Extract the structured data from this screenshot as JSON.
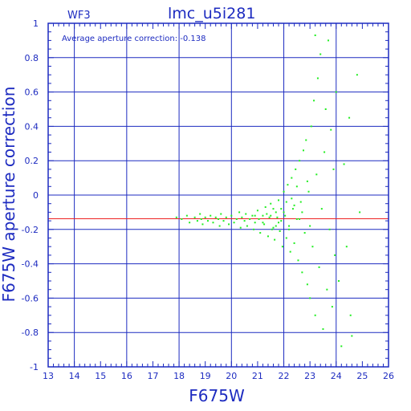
{
  "chart_data": {
    "type": "scatter",
    "title": "lmc_u5i281",
    "subtitle": "WF3",
    "annotation": "Average aperture correction: -0.138",
    "xlabel": "F675W",
    "ylabel": "F675W aperture correction",
    "xlim": [
      13,
      26
    ],
    "ylim": [
      -1,
      1
    ],
    "x_ticks": [
      "13",
      "14",
      "15",
      "16",
      "17",
      "18",
      "19",
      "20",
      "21",
      "22",
      "23",
      "24",
      "25",
      "26"
    ],
    "y_ticks": [
      "-1",
      "-0.8",
      "-0.6",
      "-0.4",
      "-0.2",
      "0",
      "0.2",
      "0.4",
      "0.6",
      "0.8",
      "1"
    ],
    "grid": true,
    "average_line": -0.138,
    "colors": {
      "axes": "#1d2bc0",
      "points": "#22ee22",
      "average_line": "#ee2222"
    },
    "points": [
      [
        17.9,
        -0.13
      ],
      [
        18.1,
        -0.14
      ],
      [
        18.3,
        -0.12
      ],
      [
        18.4,
        -0.16
      ],
      [
        18.6,
        -0.13
      ],
      [
        18.7,
        -0.15
      ],
      [
        18.8,
        -0.11
      ],
      [
        18.85,
        -0.14
      ],
      [
        18.9,
        -0.17
      ],
      [
        19.0,
        -0.13
      ],
      [
        19.1,
        -0.15
      ],
      [
        19.2,
        -0.12
      ],
      [
        19.3,
        -0.16
      ],
      [
        19.4,
        -0.13
      ],
      [
        19.5,
        -0.14
      ],
      [
        19.55,
        -0.18
      ],
      [
        19.6,
        -0.11
      ],
      [
        19.7,
        -0.15
      ],
      [
        19.8,
        -0.13
      ],
      [
        19.9,
        -0.17
      ],
      [
        20.0,
        -0.12
      ],
      [
        20.1,
        -0.16
      ],
      [
        20.2,
        -0.14
      ],
      [
        20.3,
        -0.1
      ],
      [
        20.35,
        -0.19
      ],
      [
        20.4,
        -0.13
      ],
      [
        20.5,
        -0.15
      ],
      [
        20.55,
        -0.11
      ],
      [
        20.6,
        -0.18
      ],
      [
        20.7,
        -0.14
      ],
      [
        20.8,
        -0.12
      ],
      [
        20.85,
        -0.2
      ],
      [
        20.9,
        -0.16
      ],
      [
        21.0,
        -0.09
      ],
      [
        21.05,
        -0.14
      ],
      [
        21.1,
        -0.22
      ],
      [
        21.2,
        -0.12
      ],
      [
        21.25,
        -0.17
      ],
      [
        21.3,
        -0.07
      ],
      [
        21.4,
        -0.24
      ],
      [
        21.45,
        -0.13
      ],
      [
        21.5,
        -0.05
      ],
      [
        21.6,
        -0.19
      ],
      [
        21.65,
        -0.26
      ],
      [
        21.7,
        -0.1
      ],
      [
        21.8,
        -0.03
      ],
      [
        21.85,
        -0.21
      ],
      [
        21.9,
        -0.15
      ],
      [
        21.95,
        -0.3
      ],
      [
        22.0,
        0.02
      ],
      [
        22.05,
        -0.12
      ],
      [
        22.1,
        -0.25
      ],
      [
        22.15,
        0.06
      ],
      [
        22.2,
        -0.18
      ],
      [
        22.25,
        -0.33
      ],
      [
        22.3,
        0.1
      ],
      [
        22.35,
        -0.08
      ],
      [
        22.4,
        -0.28
      ],
      [
        22.45,
        0.15
      ],
      [
        22.5,
        -0.14
      ],
      [
        22.55,
        -0.38
      ],
      [
        22.6,
        0.2
      ],
      [
        22.65,
        -0.04
      ],
      [
        22.7,
        -0.45
      ],
      [
        22.75,
        0.26
      ],
      [
        22.8,
        -0.22
      ],
      [
        22.85,
        0.32
      ],
      [
        22.9,
        -0.52
      ],
      [
        22.95,
        0.02
      ],
      [
        23.0,
        -0.6
      ],
      [
        23.05,
        0.4
      ],
      [
        23.1,
        -0.3
      ],
      [
        23.15,
        0.55
      ],
      [
        23.2,
        -0.7
      ],
      [
        23.25,
        0.12
      ],
      [
        23.3,
        0.68
      ],
      [
        23.35,
        -0.42
      ],
      [
        23.4,
        0.82
      ],
      [
        23.45,
        -0.08
      ],
      [
        23.5,
        -0.78
      ],
      [
        23.55,
        0.25
      ],
      [
        23.6,
        0.5
      ],
      [
        23.65,
        -0.55
      ],
      [
        23.7,
        0.9
      ],
      [
        23.75,
        -0.2
      ],
      [
        23.8,
        0.38
      ],
      [
        23.85,
        -0.65
      ],
      [
        23.9,
        0.15
      ],
      [
        23.95,
        -0.35
      ],
      [
        24.0,
        0.6
      ],
      [
        24.1,
        -0.5
      ],
      [
        24.2,
        -0.88
      ],
      [
        24.3,
        0.18
      ],
      [
        24.4,
        -0.3
      ],
      [
        24.5,
        0.45
      ],
      [
        24.55,
        -0.7
      ],
      [
        24.6,
        -0.82
      ],
      [
        24.8,
        0.7
      ],
      [
        24.9,
        -0.1
      ],
      [
        23.2,
        0.93
      ],
      [
        22.3,
        -0.02
      ],
      [
        22.5,
        0.05
      ],
      [
        22.7,
        -0.1
      ],
      [
        22.9,
        0.08
      ],
      [
        23.0,
        -0.18
      ],
      [
        21.8,
        -0.16
      ],
      [
        21.9,
        -0.08
      ],
      [
        22.2,
        -0.2
      ],
      [
        22.4,
        -0.06
      ],
      [
        22.6,
        -0.14
      ],
      [
        21.5,
        -0.12
      ],
      [
        21.6,
        -0.08
      ],
      [
        21.7,
        -0.18
      ],
      [
        22.0,
        -0.1
      ],
      [
        22.1,
        -0.04
      ],
      [
        20.9,
        -0.12
      ],
      [
        21.2,
        -0.16
      ],
      [
        21.35,
        -0.11
      ],
      [
        21.55,
        -0.2
      ],
      [
        21.75,
        -0.13
      ]
    ]
  }
}
